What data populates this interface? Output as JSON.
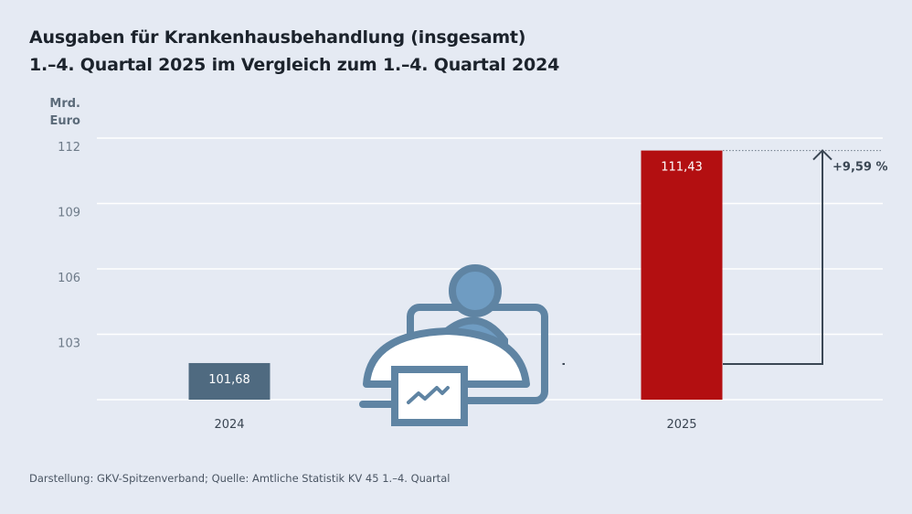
{
  "title_line1": "Ausgaben für Krankenhausbehandlung (insgesamt)",
  "title_line2": "1.–4. Quartal 2025 im Vergleich zum 1.–4. Quartal 2024",
  "unit_line1": "Mrd.",
  "unit_line2": "Euro",
  "footer": "Darstellung: GKV-Spitzenverband; Quelle: Amtliche Statistik KV 45 1.–4. Quartal",
  "chart_data": {
    "type": "bar",
    "categories": [
      "2024",
      "2025"
    ],
    "values": [
      101.68,
      111.43
    ],
    "value_labels": [
      "101,68",
      "111,43"
    ],
    "colors": [
      "#4f6a80",
      "#b30f11"
    ],
    "ylabel": "Mrd. Euro",
    "ylim": [
      100,
      112
    ],
    "yticks": [
      103,
      106,
      109,
      112
    ],
    "grid": true,
    "annotation": "+9,59 %",
    "icon": "hospital-bed-patient-monitor-icon"
  }
}
